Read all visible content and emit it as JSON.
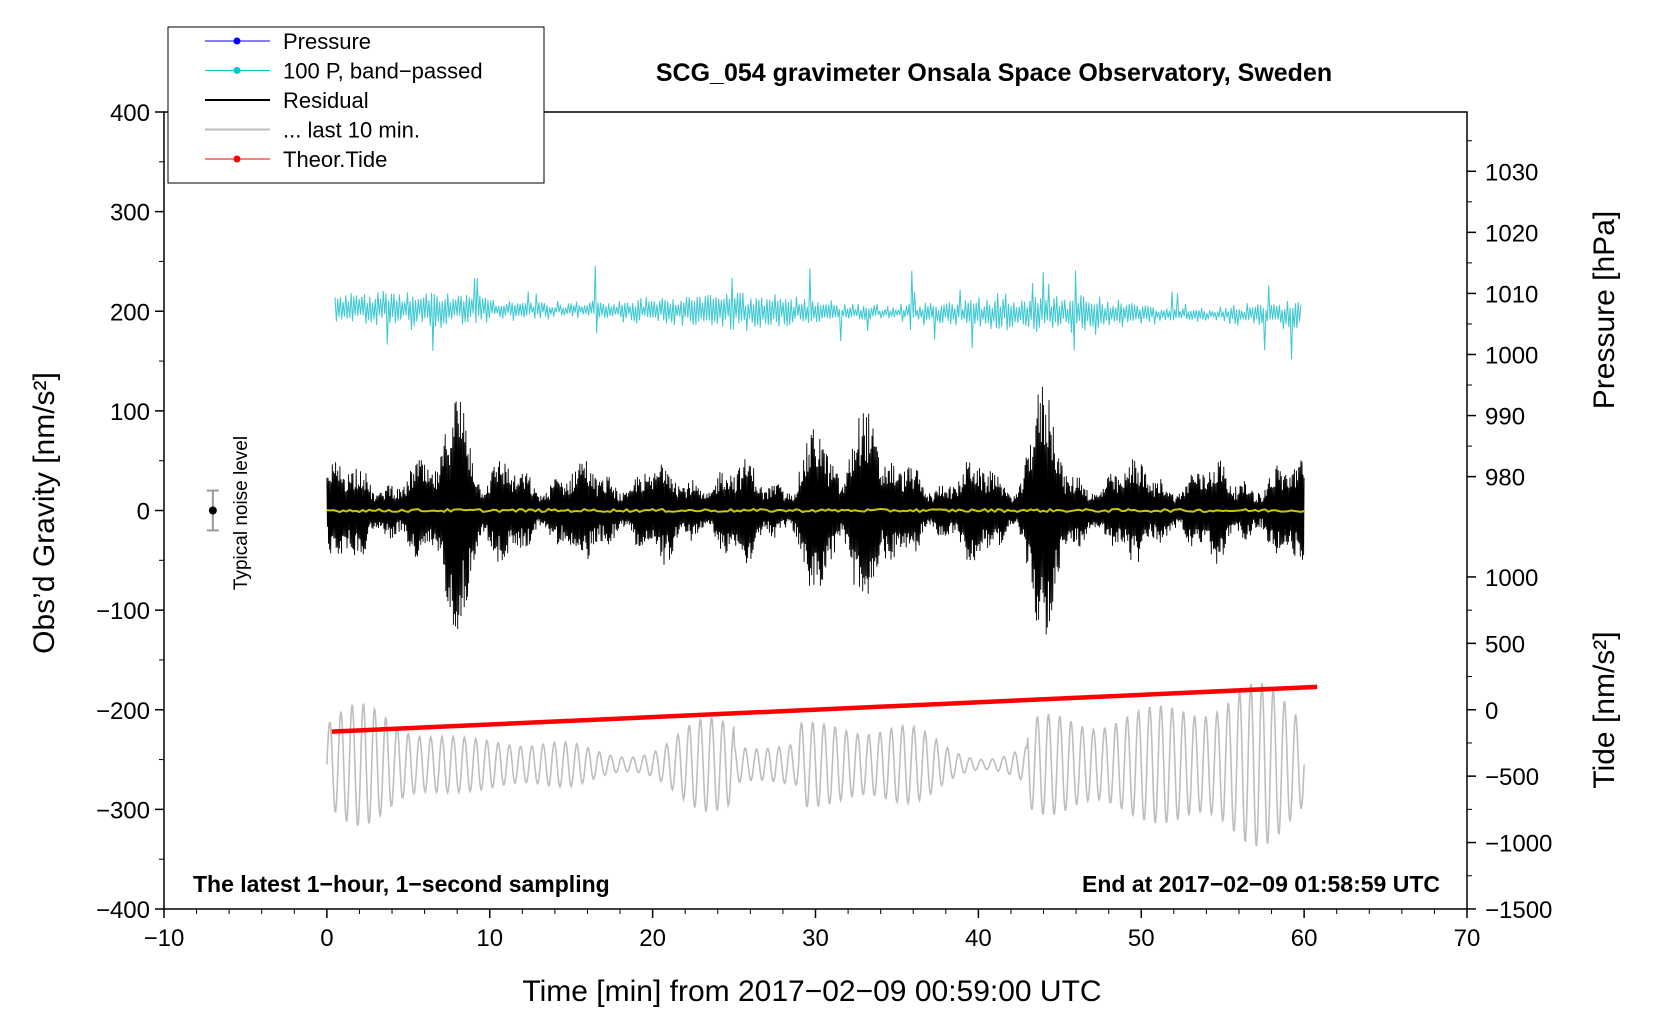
{
  "chart_data": {
    "type": "line",
    "title": "SCG_054 gravimeter Onsala Space Observatory, Sweden",
    "xlabel": "Time [min] from 2017−02−09 00:59:00 UTC",
    "ylabel_left": "Obs’d Gravity [nm/s²]",
    "ylabel_right_pressure": "Pressure [hPa]",
    "ylabel_right_tide": "Tide [nm/s²]",
    "xlim": [
      -10,
      70
    ],
    "ylim": [
      -400,
      400
    ],
    "x_ticks": [
      -10,
      0,
      10,
      20,
      30,
      40,
      50,
      60,
      70
    ],
    "x_tick_labels": [
      "−10",
      "0",
      "10",
      "20",
      "30",
      "40",
      "50",
      "60",
      "70"
    ],
    "y_ticks": [
      -400,
      -300,
      -200,
      -100,
      0,
      100,
      200,
      300,
      400
    ],
    "y_tick_labels": [
      "−400",
      "−300",
      "−200",
      "−100",
      "0",
      "100",
      "200",
      "300",
      "400"
    ],
    "pressure_axis": {
      "ticks": [
        980,
        990,
        1000,
        1010,
        1020,
        1030
      ],
      "labels": [
        "980",
        "990",
        "1000",
        "1010",
        "1020",
        "1030"
      ],
      "left_value_at_980": 34.0,
      "left_units_per_hPa": 6.13
    },
    "tide_axis": {
      "ticks": [
        -1500,
        -1000,
        -500,
        0,
        500,
        1000
      ],
      "labels": [
        "−1500",
        "−1000",
        "−500",
        "0",
        "500",
        "1000"
      ],
      "left_value_at_0": -200.0,
      "left_units_per_unit": 0.1333
    },
    "annotations": {
      "bottom_left": "The latest 1−hour, 1−second sampling",
      "bottom_right": "End at 2017−02−09 01:58:59 UTC",
      "noise_label": "Typical noise level"
    },
    "noise_bar": {
      "x": -7,
      "y": 0,
      "low": -20,
      "high": 20
    },
    "legend": [
      {
        "name": "Pressure",
        "color": "#0000ff",
        "marker": true
      },
      {
        "name": "100 P, band−passed",
        "color": "#00c8c8",
        "marker": true
      },
      {
        "name": "Residual",
        "color": "#000000",
        "marker": false
      },
      {
        "name": "... last 10 min.",
        "color": "#bebebe",
        "marker": false
      },
      {
        "name": "Theor.Tide",
        "color": "#ff0000",
        "marker": true
      }
    ],
    "series": [
      {
        "name": "100 P, band−passed",
        "color": "#3cc8d2",
        "x_range": [
          0.5,
          59.8
        ],
        "center": 203,
        "description": "noisy trace between about 145 and 250"
      },
      {
        "name": "Residual",
        "color": "#000000",
        "x_range": [
          0,
          60
        ],
        "center": 0,
        "envelope_peaks": [
          [
            8,
            120
          ],
          [
            30,
            85
          ],
          [
            33,
            105
          ],
          [
            44,
            130
          ]
        ]
      },
      {
        "name": "Residual (smoothed)",
        "color": "#c8c800",
        "x_range": [
          0,
          60
        ],
        "center": 0
      },
      {
        "name": "... last 10 min.",
        "color": "#bebebe",
        "x_range": [
          0,
          60
        ],
        "center": -255,
        "description": "oscillation between about -340 and -155"
      },
      {
        "name": "Theor.Tide",
        "color": "#ff0000",
        "x": [
          0.3,
          60.8
        ],
        "y": [
          -222,
          -177
        ]
      }
    ]
  }
}
